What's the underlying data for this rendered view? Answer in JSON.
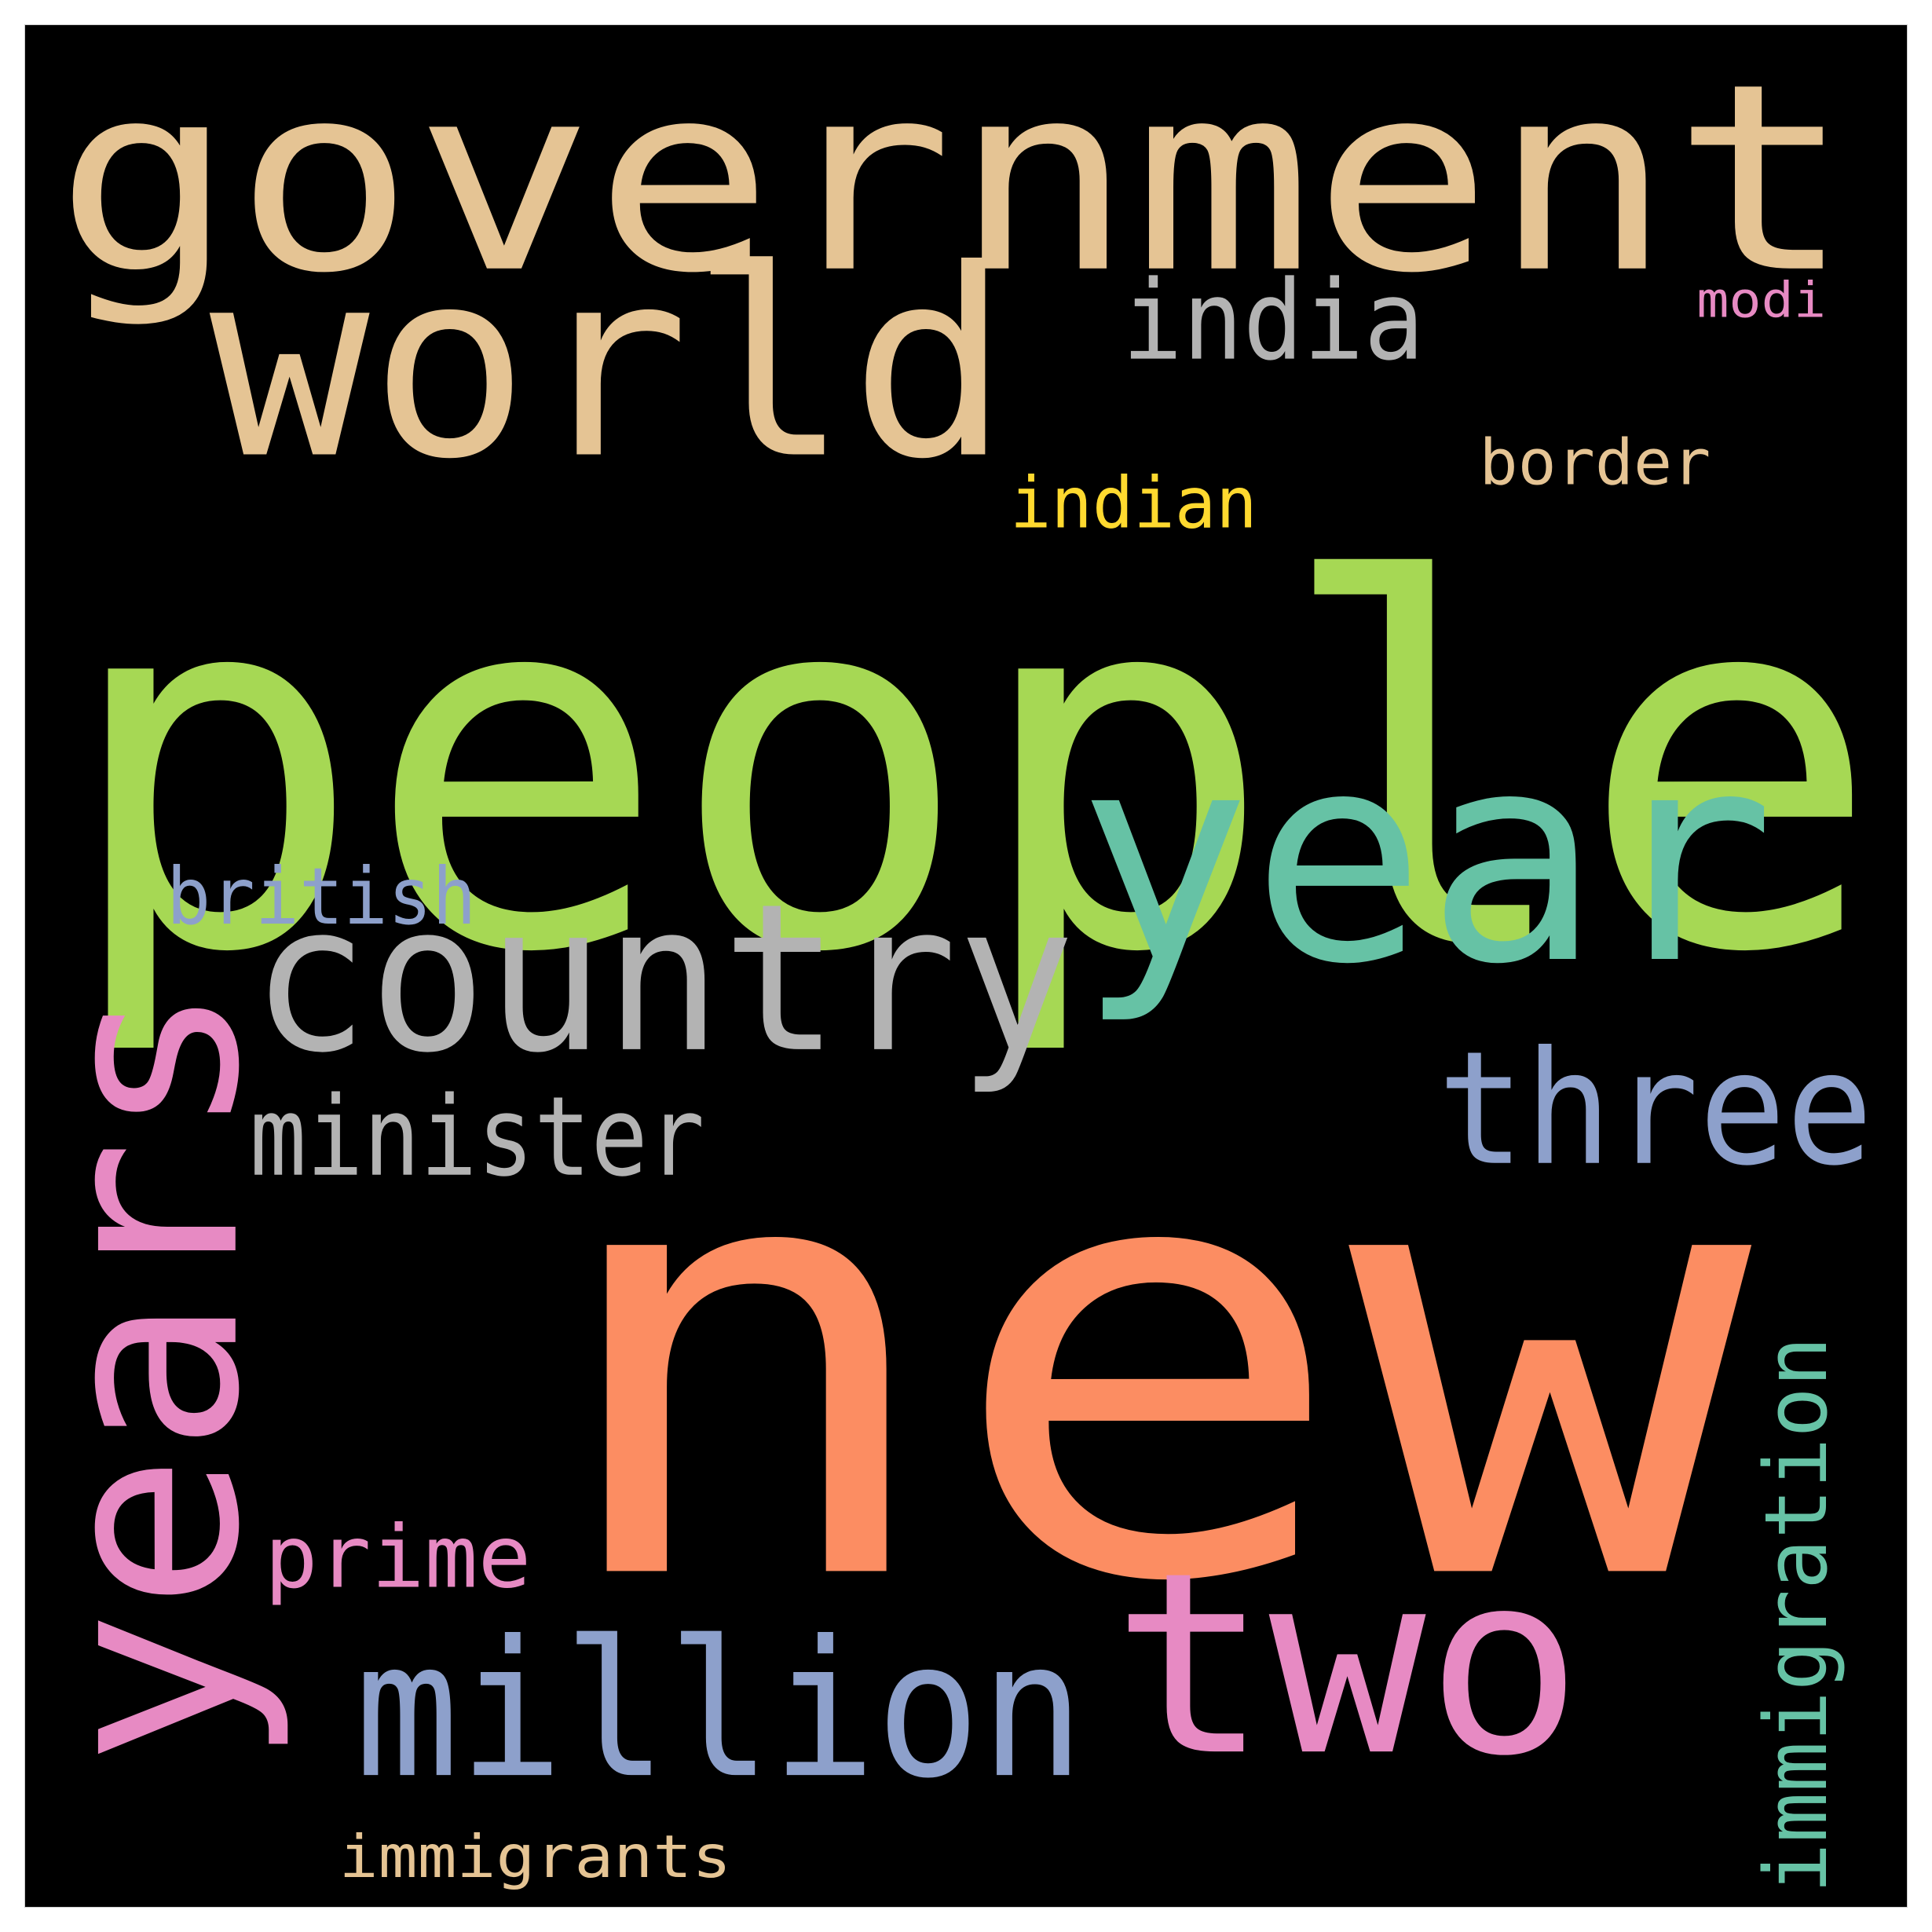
{
  "background_color": "#000000",
  "frame_color": "#ffffff",
  "words": [
    {
      "text": "people",
      "color": "#a6d854",
      "orientation": "horizontal"
    },
    {
      "text": "new",
      "color": "#fc8d62",
      "orientation": "horizontal"
    },
    {
      "text": "government",
      "color": "#e5c494",
      "orientation": "horizontal"
    },
    {
      "text": "world",
      "color": "#e5c494",
      "orientation": "horizontal"
    },
    {
      "text": "year",
      "color": "#66c2a5",
      "orientation": "horizontal"
    },
    {
      "text": "years",
      "color": "#e78ac3",
      "orientation": "vertical"
    },
    {
      "text": "country",
      "color": "#b3b3b3",
      "orientation": "horizontal"
    },
    {
      "text": "two",
      "color": "#e78ac3",
      "orientation": "horizontal"
    },
    {
      "text": "million",
      "color": "#8da0cb",
      "orientation": "horizontal"
    },
    {
      "text": "three",
      "color": "#8da0cb",
      "orientation": "horizontal"
    },
    {
      "text": "minister",
      "color": "#b3b3b3",
      "orientation": "horizontal"
    },
    {
      "text": "india",
      "color": "#b3b3b3",
      "orientation": "horizontal"
    },
    {
      "text": "immigration",
      "color": "#66c2a5",
      "orientation": "vertical"
    },
    {
      "text": "prime",
      "color": "#e78ac3",
      "orientation": "horizontal"
    },
    {
      "text": "british",
      "color": "#8da0cb",
      "orientation": "horizontal"
    },
    {
      "text": "indian",
      "color": "#ffd92f",
      "orientation": "horizontal"
    },
    {
      "text": "border",
      "color": "#e5c494",
      "orientation": "horizontal"
    },
    {
      "text": "immigrants",
      "color": "#e5c494",
      "orientation": "horizontal"
    },
    {
      "text": "modi",
      "color": "#e78ac3",
      "orientation": "horizontal"
    }
  ]
}
